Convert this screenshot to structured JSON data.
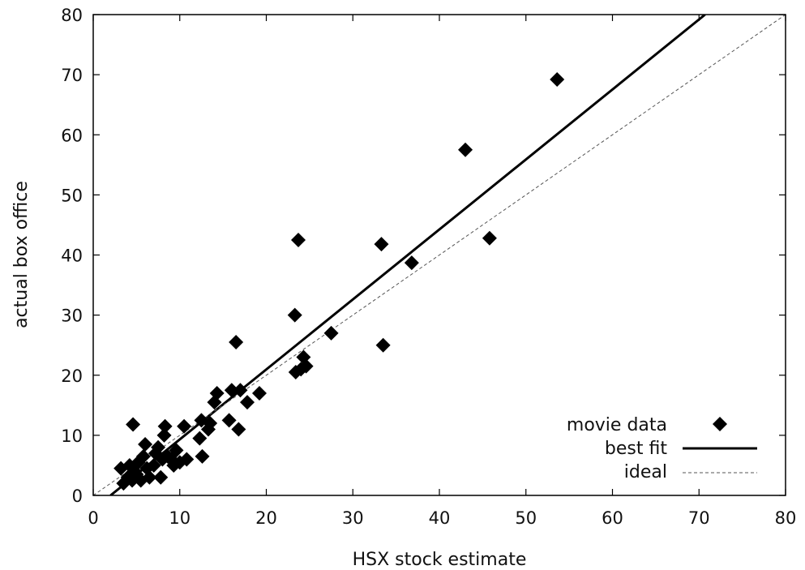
{
  "chart_data": {
    "type": "scatter",
    "xlabel": "HSX stock estimate",
    "ylabel": "actual box office",
    "xlim": [
      0,
      80
    ],
    "ylim": [
      0,
      80
    ],
    "xticks": [
      0,
      10,
      20,
      30,
      40,
      50,
      60,
      70,
      80
    ],
    "yticks": [
      0,
      10,
      20,
      30,
      40,
      50,
      60,
      70,
      80
    ],
    "grid": false,
    "legend": {
      "position": "bottom-right"
    },
    "series": [
      {
        "name": "movie data",
        "kind": "points",
        "marker": "diamond",
        "color": "#000000",
        "points": [
          [
            3.2,
            4.5
          ],
          [
            3.5,
            2.0
          ],
          [
            4.0,
            3.0
          ],
          [
            4.2,
            5.0
          ],
          [
            4.5,
            2.5
          ],
          [
            4.8,
            4.0
          ],
          [
            5.0,
            3.5
          ],
          [
            5.2,
            5.5
          ],
          [
            5.5,
            2.5
          ],
          [
            5.8,
            6.5
          ],
          [
            6.0,
            8.5
          ],
          [
            6.2,
            4.5
          ],
          [
            6.5,
            3.0
          ],
          [
            7.0,
            5.0
          ],
          [
            7.2,
            7.0
          ],
          [
            7.5,
            8.0
          ],
          [
            7.8,
            3.0
          ],
          [
            8.0,
            6.0
          ],
          [
            8.2,
            10.0
          ],
          [
            8.3,
            11.5
          ],
          [
            8.6,
            6.5
          ],
          [
            9.0,
            6.0
          ],
          [
            9.3,
            5.0
          ],
          [
            9.6,
            7.5
          ],
          [
            10.0,
            5.5
          ],
          [
            10.5,
            11.5
          ],
          [
            10.8,
            6.0
          ],
          [
            4.6,
            11.8
          ],
          [
            12.3,
            9.5
          ],
          [
            12.5,
            12.5
          ],
          [
            12.6,
            6.5
          ],
          [
            13.3,
            11.0
          ],
          [
            13.5,
            12.0
          ],
          [
            14.0,
            15.5
          ],
          [
            14.3,
            17.0
          ],
          [
            15.7,
            12.5
          ],
          [
            16.0,
            17.5
          ],
          [
            16.5,
            25.5
          ],
          [
            16.8,
            11.0
          ],
          [
            17.0,
            17.5
          ],
          [
            17.8,
            15.5
          ],
          [
            19.2,
            17.0
          ],
          [
            23.3,
            30.0
          ],
          [
            23.4,
            20.5
          ],
          [
            23.7,
            42.5
          ],
          [
            24.0,
            21.0
          ],
          [
            24.3,
            23.0
          ],
          [
            24.6,
            21.5
          ],
          [
            27.5,
            27.0
          ],
          [
            33.3,
            41.8
          ],
          [
            33.5,
            25.0
          ],
          [
            36.8,
            38.7
          ],
          [
            43.0,
            57.5
          ],
          [
            45.8,
            42.8
          ],
          [
            53.6,
            69.2
          ]
        ]
      },
      {
        "name": "best fit",
        "kind": "line",
        "color": "#000000",
        "dash": "solid",
        "x": [
          2,
          70.7
        ],
        "y": [
          0,
          80
        ]
      },
      {
        "name": "ideal",
        "kind": "line",
        "color": "#555555",
        "dash": "dashed",
        "x": [
          0,
          80
        ],
        "y": [
          0,
          80
        ]
      }
    ]
  }
}
